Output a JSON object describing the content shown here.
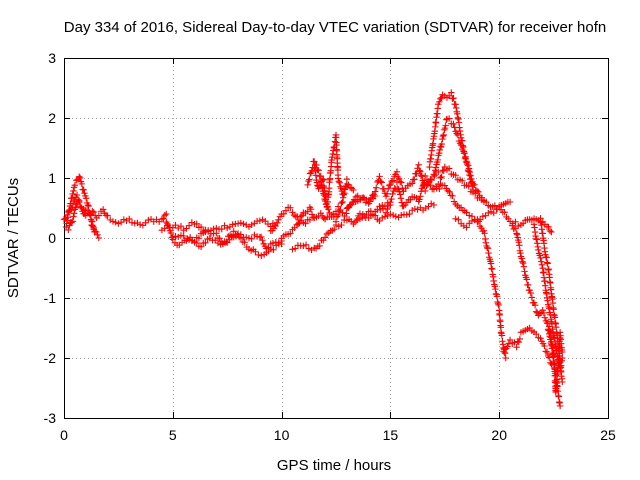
{
  "chart_data": {
    "type": "scatter",
    "title": "Day 334 of 2016, Sidereal Day-to-day VTEC variation (SDTVAR) for receiver hofn",
    "xlabel": "GPS time / hours",
    "ylabel": "SDTVAR / TECUs",
    "xlim": [
      0,
      25
    ],
    "ylim": [
      -3,
      3
    ],
    "x_ticks": [
      "0",
      "5",
      "10",
      "15",
      "20",
      "25"
    ],
    "y_ticks": [
      "3",
      "2",
      "1",
      "0",
      "-1",
      "-2",
      "-3"
    ],
    "grid": true,
    "marker": "+",
    "series": [
      {
        "name": "SDTVAR",
        "color": "#ff0000",
        "tracks": [
          {
            "x": [
              0.0,
              0.3,
              0.6,
              0.8,
              1.0,
              1.3,
              1.5,
              1.8,
              2.0,
              2.5,
              3.0,
              3.5,
              4.0,
              4.5,
              4.7
            ],
            "y": [
              0.3,
              0.45,
              0.7,
              0.5,
              0.35,
              0.45,
              0.35,
              0.45,
              0.35,
              0.25,
              0.3,
              0.2,
              0.3,
              0.3,
              0.4
            ]
          },
          {
            "x": [
              0.1,
              0.3,
              0.5,
              0.7,
              0.9,
              1.1,
              1.3,
              1.6
            ],
            "y": [
              0.2,
              0.6,
              0.9,
              1.02,
              0.8,
              0.55,
              0.2,
              0.0
            ]
          },
          {
            "x": [
              0.2,
              0.4,
              0.6,
              0.9,
              1.2,
              1.4
            ],
            "y": [
              0.15,
              0.3,
              0.6,
              0.5,
              0.4,
              0.1
            ]
          },
          {
            "x": [
              4.7,
              5.0,
              5.3,
              5.8,
              6.2,
              6.7,
              7.2,
              7.5,
              7.8,
              8.0,
              8.5,
              9.0,
              9.3,
              9.6,
              10.0
            ],
            "y": [
              0.3,
              -0.05,
              -0.1,
              0.0,
              -0.15,
              0.0,
              -0.1,
              -0.05,
              0.0,
              0.05,
              0.0,
              0.05,
              -0.15,
              -0.1,
              -0.05
            ]
          },
          {
            "x": [
              4.5,
              5.0,
              5.5,
              6.0,
              6.5,
              7.0,
              7.5,
              8.0,
              8.5,
              9.0,
              9.5,
              9.8
            ],
            "y": [
              0.15,
              0.2,
              0.15,
              0.25,
              0.1,
              0.15,
              0.2,
              0.25,
              0.2,
              0.3,
              0.2,
              0.25
            ]
          },
          {
            "x": [
              5.0,
              5.5,
              6.0,
              6.5,
              7.0,
              7.3,
              7.8,
              8.3,
              8.8,
              9.2,
              9.5,
              10.0
            ],
            "y": [
              0.05,
              0.0,
              -0.05,
              0.1,
              0.05,
              -0.1,
              0.1,
              -0.1,
              -0.25,
              -0.3,
              -0.2,
              -0.1
            ]
          },
          {
            "x": [
              9.5,
              10.0,
              10.3,
              10.5,
              10.8,
              11.0,
              11.3
            ],
            "y": [
              0.1,
              0.4,
              0.5,
              0.45,
              0.3,
              0.25,
              0.3
            ]
          },
          {
            "x": [
              10.0,
              10.4,
              10.7,
              11.0,
              11.3,
              11.5,
              11.8,
              12.0,
              12.3,
              12.6,
              12.9,
              13.2,
              13.5,
              13.8,
              14.0,
              14.3
            ],
            "y": [
              0.0,
              0.1,
              0.2,
              0.4,
              0.5,
              0.3,
              0.4,
              0.3,
              0.4,
              0.5,
              0.4,
              0.55,
              0.6,
              0.65,
              0.6,
              0.7
            ]
          },
          {
            "x": [
              10.5,
              11.0,
              11.5,
              12.0,
              12.5,
              13.0,
              13.3,
              13.6,
              14.0,
              14.4,
              14.8,
              15.0
            ],
            "y": [
              -0.2,
              -0.1,
              -0.2,
              0.0,
              0.2,
              0.3,
              0.25,
              0.4,
              0.35,
              0.5,
              0.45,
              0.55
            ]
          },
          {
            "x": [
              11.5,
              11.7,
              11.9,
              12.1,
              12.3,
              12.5,
              12.6,
              12.8,
              13.0
            ],
            "y": [
              1.2,
              0.8,
              1.0,
              0.5,
              1.3,
              1.7,
              1.0,
              0.7,
              0.9
            ]
          },
          {
            "x": [
              11.2,
              11.5,
              11.8,
              12.0,
              12.2,
              12.5,
              12.8,
              13.0,
              13.3
            ],
            "y": [
              0.9,
              1.3,
              1.0,
              0.6,
              0.4,
              0.3,
              0.6,
              0.95,
              0.8
            ]
          },
          {
            "x": [
              13.0,
              13.5,
              14.0,
              14.3,
              14.5,
              14.8,
              15.0,
              15.3,
              15.6,
              16.0,
              16.3,
              16.6,
              16.9,
              17.2
            ],
            "y": [
              0.5,
              0.7,
              0.6,
              0.8,
              1.0,
              0.7,
              0.9,
              1.1,
              0.8,
              0.9,
              1.2,
              0.8,
              1.0,
              1.1
            ]
          },
          {
            "x": [
              13.5,
              14.0,
              14.5,
              15.0,
              15.5,
              16.0,
              16.5,
              17.0
            ],
            "y": [
              0.3,
              0.45,
              0.3,
              0.4,
              0.35,
              0.45,
              0.5,
              0.55
            ]
          },
          {
            "x": [
              14.5,
              15.0,
              15.3,
              15.6,
              16.0,
              16.3,
              16.6,
              17.0,
              17.3
            ],
            "y": [
              0.5,
              0.6,
              0.9,
              0.5,
              0.7,
              0.6,
              1.0,
              0.8,
              0.9
            ]
          },
          {
            "x": [
              16.8,
              17.0,
              17.2,
              17.4,
              17.6,
              17.8,
              18.0,
              18.2,
              18.4,
              18.6,
              18.8
            ],
            "y": [
              1.2,
              1.7,
              2.2,
              2.4,
              2.35,
              2.4,
              2.2,
              1.8,
              1.4,
              1.1,
              0.8
            ]
          },
          {
            "x": [
              17.0,
              17.3,
              17.6,
              17.9,
              18.2,
              18.5,
              18.8,
              19.1,
              19.4
            ],
            "y": [
              1.0,
              1.5,
              2.0,
              1.9,
              1.6,
              1.3,
              0.9,
              0.7,
              0.6
            ]
          },
          {
            "x": [
              17.3,
              17.5,
              17.8,
              18.1,
              18.4,
              18.7,
              19.0,
              19.3,
              19.6,
              19.9,
              20.2,
              20.5
            ],
            "y": [
              1.0,
              1.2,
              1.1,
              1.0,
              0.9,
              0.8,
              0.7,
              0.6,
              0.55,
              0.5,
              0.55,
              0.6
            ]
          },
          {
            "x": [
              17.0,
              17.5,
              18.0,
              18.5,
              19.0,
              19.3,
              19.6,
              19.8,
              20.0,
              20.1,
              20.2,
              20.3
            ],
            "y": [
              0.8,
              0.9,
              0.6,
              0.4,
              0.3,
              0.1,
              -0.4,
              -0.8,
              -1.2,
              -1.6,
              -1.8,
              -2.0
            ]
          },
          {
            "x": [
              18.0,
              18.5,
              19.0,
              19.5,
              20.0,
              20.5,
              21.0,
              21.3,
              21.6,
              21.9,
              22.2,
              22.4
            ],
            "y": [
              0.3,
              0.2,
              0.3,
              0.4,
              0.5,
              0.3,
              0.2,
              0.3,
              0.35,
              0.3,
              0.2,
              0.1
            ]
          },
          {
            "x": [
              20.2,
              20.5,
              20.8,
              21.0,
              21.3,
              21.6,
              21.9,
              22.2,
              22.4
            ],
            "y": [
              -1.9,
              -1.7,
              -1.8,
              -1.6,
              -1.5,
              -1.6,
              -1.7,
              -1.9,
              -2.1
            ]
          },
          {
            "x": [
              20.6,
              20.8,
              21.0,
              21.2,
              21.4,
              21.6,
              21.8,
              22.0,
              22.2,
              22.4,
              22.6,
              22.8
            ],
            "y": [
              0.2,
              0.1,
              -0.3,
              -0.6,
              -0.9,
              -1.1,
              -1.3,
              -1.2,
              -1.4,
              -1.8,
              -2.3,
              -2.8
            ]
          },
          {
            "x": [
              21.6,
              21.8,
              22.0,
              22.2,
              22.4,
              22.6,
              22.8,
              22.9
            ],
            "y": [
              0.2,
              -0.2,
              -0.5,
              -1.0,
              -1.4,
              -1.8,
              -2.2,
              -2.0
            ]
          },
          {
            "x": [
              21.9,
              22.1,
              22.3,
              22.5,
              22.7,
              22.8,
              22.9
            ],
            "y": [
              0.3,
              -0.2,
              -0.6,
              -1.2,
              -1.7,
              -2.1,
              -2.4
            ]
          },
          {
            "x": [
              22.3,
              22.5,
              22.6,
              22.7,
              22.8,
              22.9
            ],
            "y": [
              -1.5,
              -1.9,
              -2.6,
              -2.2,
              -1.6,
              -1.9
            ]
          }
        ]
      }
    ]
  }
}
